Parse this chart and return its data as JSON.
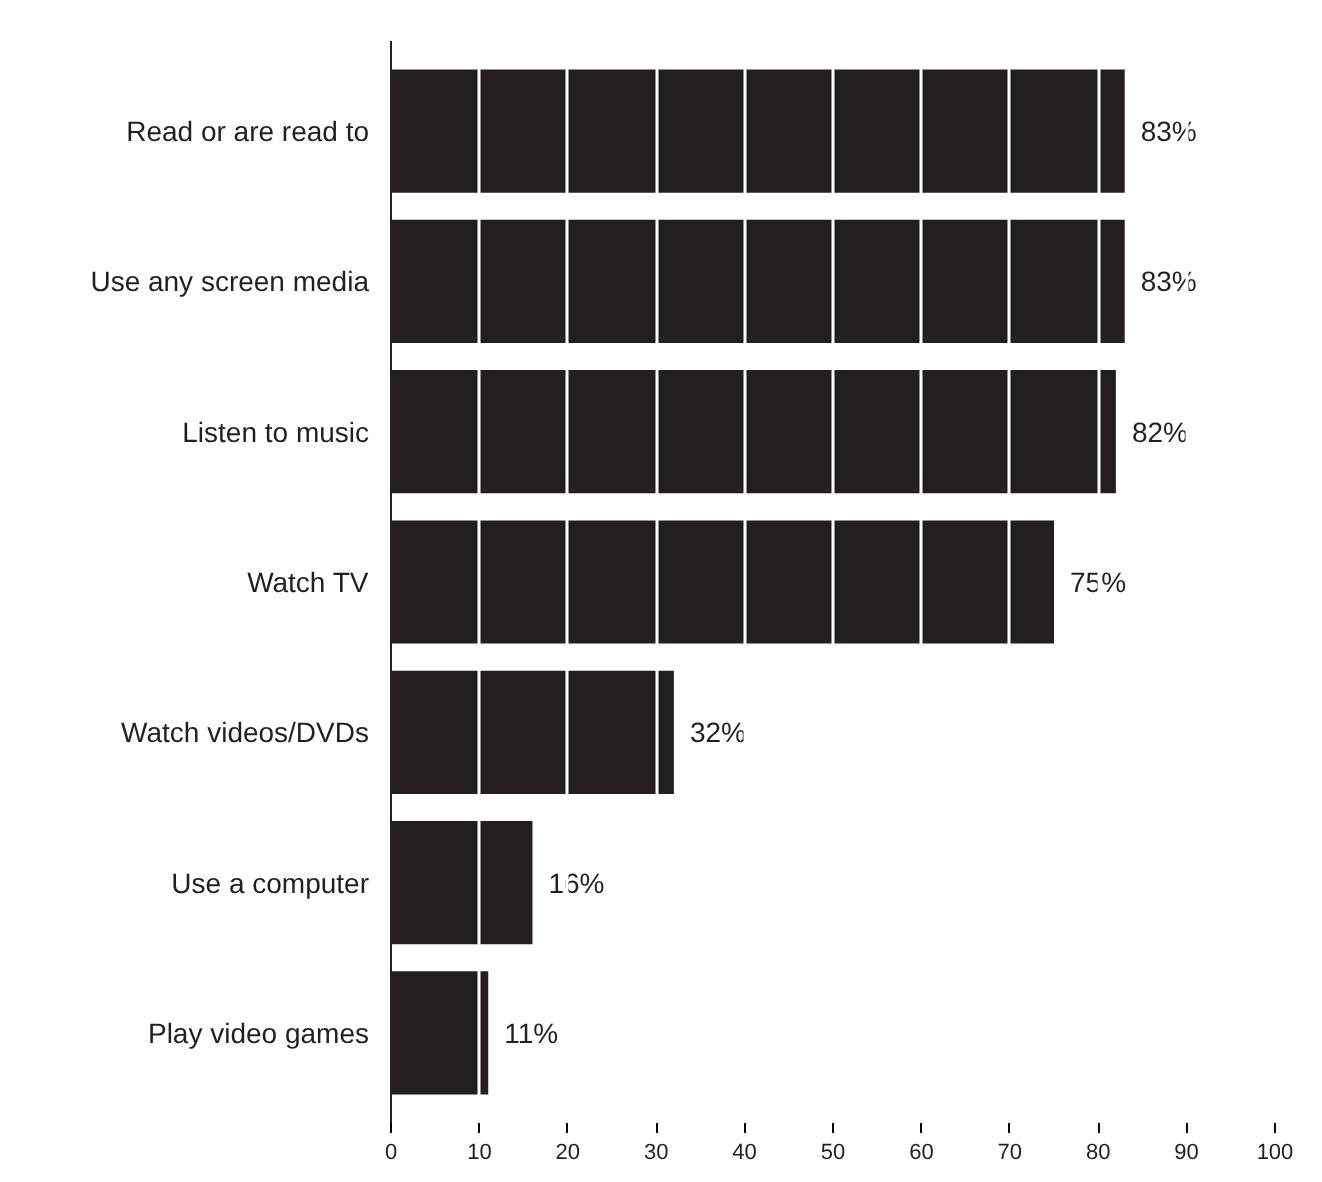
{
  "chart_data": {
    "type": "bar",
    "orientation": "horizontal",
    "categories": [
      "Read or are read to",
      "Use any screen media",
      "Listen to music",
      "Watch TV",
      "Watch videos/DVDs",
      "Use a computer",
      "Play video games"
    ],
    "values": [
      83,
      83,
      82,
      75,
      32,
      16,
      11
    ],
    "value_labels": [
      "83%",
      "83%",
      "82%",
      "75%",
      "32%",
      "16%",
      "11%"
    ],
    "color": "#231f20",
    "xlim": [
      0,
      100
    ],
    "xticks": [
      0,
      10,
      20,
      30,
      40,
      50,
      60,
      70,
      80,
      90,
      100
    ],
    "grid": "x"
  }
}
